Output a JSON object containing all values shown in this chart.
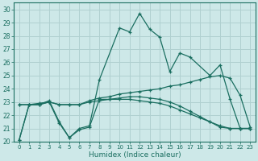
{
  "xlabel": "Humidex (Indice chaleur)",
  "xlim": [
    -0.5,
    23.5
  ],
  "ylim": [
    20,
    30.5
  ],
  "yticks": [
    20,
    21,
    22,
    23,
    24,
    25,
    26,
    27,
    28,
    29,
    30
  ],
  "xticks": [
    0,
    1,
    2,
    3,
    4,
    5,
    6,
    7,
    8,
    9,
    10,
    11,
    12,
    13,
    14,
    15,
    16,
    17,
    18,
    19,
    20,
    21,
    22,
    23
  ],
  "background_color": "#cde8e8",
  "grid_color": "#b0d0d0",
  "line_color": "#1a6e60",
  "lines": [
    {
      "x": [
        0,
        1,
        2,
        3,
        4,
        5,
        6,
        7,
        8,
        10,
        11,
        12,
        13,
        14,
        15,
        16,
        17,
        19,
        20,
        21,
        22,
        23
      ],
      "y": [
        20.1,
        22.8,
        22.8,
        23.1,
        21.5,
        20.3,
        21.0,
        21.2,
        24.7,
        28.6,
        28.3,
        29.7,
        28.5,
        27.9,
        25.3,
        26.7,
        26.4,
        25.0,
        25.8,
        23.2,
        21.0,
        21.0
      ]
    },
    {
      "x": [
        0,
        1,
        2,
        3,
        4,
        5,
        6,
        7,
        8,
        9,
        10,
        11,
        12,
        13,
        14,
        15,
        16,
        17,
        18,
        19,
        20,
        21,
        22,
        23
      ],
      "y": [
        22.8,
        22.8,
        22.9,
        23.0,
        22.8,
        22.8,
        22.8,
        23.1,
        23.3,
        23.4,
        23.6,
        23.7,
        23.8,
        23.9,
        24.0,
        24.2,
        24.3,
        24.5,
        24.7,
        24.9,
        25.0,
        24.8,
        23.5,
        21.1
      ]
    },
    {
      "x": [
        0,
        1,
        2,
        3,
        4,
        5,
        6,
        7,
        8,
        9,
        10,
        11,
        12,
        13,
        14,
        15,
        16,
        17,
        18,
        19,
        20,
        21,
        22,
        23
      ],
      "y": [
        22.8,
        22.8,
        22.8,
        23.0,
        22.8,
        22.8,
        22.8,
        23.0,
        23.1,
        23.2,
        23.2,
        23.2,
        23.1,
        23.0,
        22.9,
        22.7,
        22.4,
        22.1,
        21.8,
        21.5,
        21.2,
        21.0,
        21.0,
        21.0
      ]
    },
    {
      "x": [
        0,
        1,
        2,
        3,
        4,
        5,
        6,
        7,
        8,
        9,
        10,
        11,
        12,
        13,
        14,
        15,
        16,
        17,
        18,
        19,
        20,
        21,
        22,
        23
      ],
      "y": [
        20.1,
        22.8,
        22.8,
        23.0,
        21.4,
        20.3,
        20.9,
        21.1,
        23.2,
        23.2,
        23.3,
        23.4,
        23.4,
        23.3,
        23.2,
        23.0,
        22.7,
        22.3,
        21.9,
        21.5,
        21.1,
        21.0,
        21.0,
        21.0
      ]
    }
  ]
}
